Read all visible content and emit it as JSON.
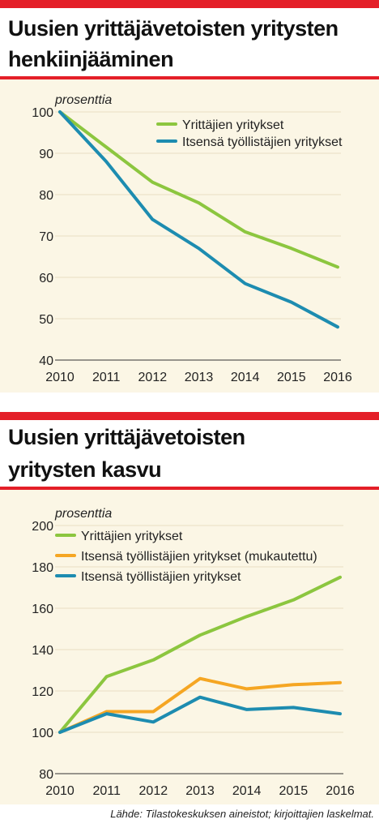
{
  "colors": {
    "accent_red": "#e41f28",
    "plot_background": "#fbf6e5",
    "green": "#8cc63f",
    "teal": "#1d8cb0",
    "orange": "#f5a623"
  },
  "source": "Lähde: Tilastokeskuksen aineistot; kirjoittajien laskelmat.",
  "chart_data": [
    {
      "type": "line",
      "title": "Uusien yrittäjävetoisten yritysten henkiinjääminen",
      "title_lines": [
        "Uusien yrittäjävetoisten yritysten",
        "henkiinjääminen"
      ],
      "ylabel": "prosenttia",
      "xlabel": "",
      "x": [
        "2010",
        "2011",
        "2012",
        "2013",
        "2014",
        "2015",
        "2016"
      ],
      "ylim": [
        40,
        100
      ],
      "yticks": [
        "40",
        "50",
        "60",
        "70",
        "80",
        "90",
        "100"
      ],
      "legend_position": "top-right",
      "series": [
        {
          "name": "Yrittäjien yritykset",
          "color": "#8cc63f",
          "values": [
            100,
            91.5,
            83,
            78,
            71,
            67,
            62.5
          ]
        },
        {
          "name": "Itsensä työllistäjien yritykset",
          "color": "#1d8cb0",
          "values": [
            100,
            88,
            74,
            67,
            58.5,
            54,
            48
          ]
        }
      ]
    },
    {
      "type": "line",
      "title": "Uusien yrittäjävetoisten yritysten kasvu",
      "title_lines": [
        "Uusien yrittäjävetoisten",
        "yritysten kasvu"
      ],
      "ylabel": "prosenttia",
      "xlabel": "",
      "x": [
        "2010",
        "2011",
        "2012",
        "2013",
        "2014",
        "2015",
        "2016"
      ],
      "ylim": [
        80,
        200
      ],
      "yticks": [
        "80",
        "100",
        "120",
        "140",
        "160",
        "180",
        "200"
      ],
      "legend_position": "top-left",
      "series": [
        {
          "name": "Yrittäjien yritykset",
          "color": "#8cc63f",
          "values": [
            100,
            127,
            135,
            147,
            156,
            164,
            175
          ]
        },
        {
          "name": "Itsensä työllistäjien yritykset (mukautettu)",
          "color": "#f5a623",
          "values": [
            100,
            110,
            110,
            126,
            121,
            123,
            124
          ]
        },
        {
          "name": "Itsensä työllistäjien yritykset",
          "color": "#1d8cb0",
          "values": [
            100,
            109,
            105,
            117,
            111,
            112,
            109
          ]
        }
      ]
    }
  ]
}
